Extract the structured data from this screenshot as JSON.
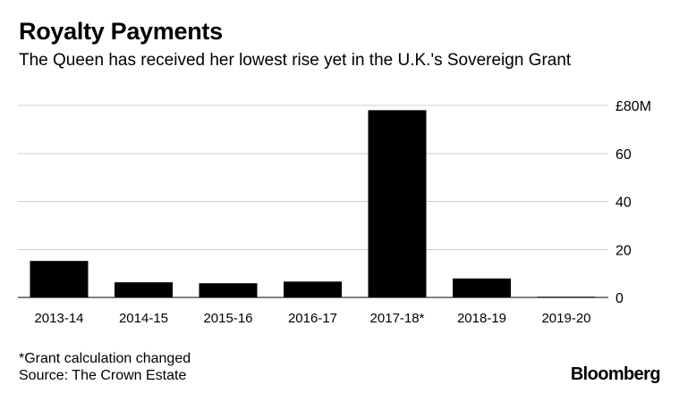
{
  "chart_data": {
    "type": "bar",
    "title": "Royalty Payments",
    "subtitle": "The Queen has received her lowest rise yet in the U.K.'s Sovereign Grant",
    "categories": [
      "2013-14",
      "2014-15",
      "2015-16",
      "2016-17",
      "2017-18*",
      "2018-19",
      "2019-20"
    ],
    "values": [
      15.2,
      6.3,
      5.9,
      6.6,
      78.0,
      7.9,
      0.3
    ],
    "ylim": [
      0,
      80
    ],
    "yticks": [
      0,
      20,
      40,
      60,
      80
    ],
    "ytick_labels": [
      "0",
      "20",
      "40",
      "60",
      "£80M"
    ],
    "xlabel": "",
    "ylabel": "",
    "grid": true,
    "bar_color": "#000000",
    "grid_color": "#cccccc"
  },
  "footnote": {
    "note": "*Grant calculation changed",
    "source": "Source: The Crown Estate"
  },
  "brand": "Bloomberg"
}
